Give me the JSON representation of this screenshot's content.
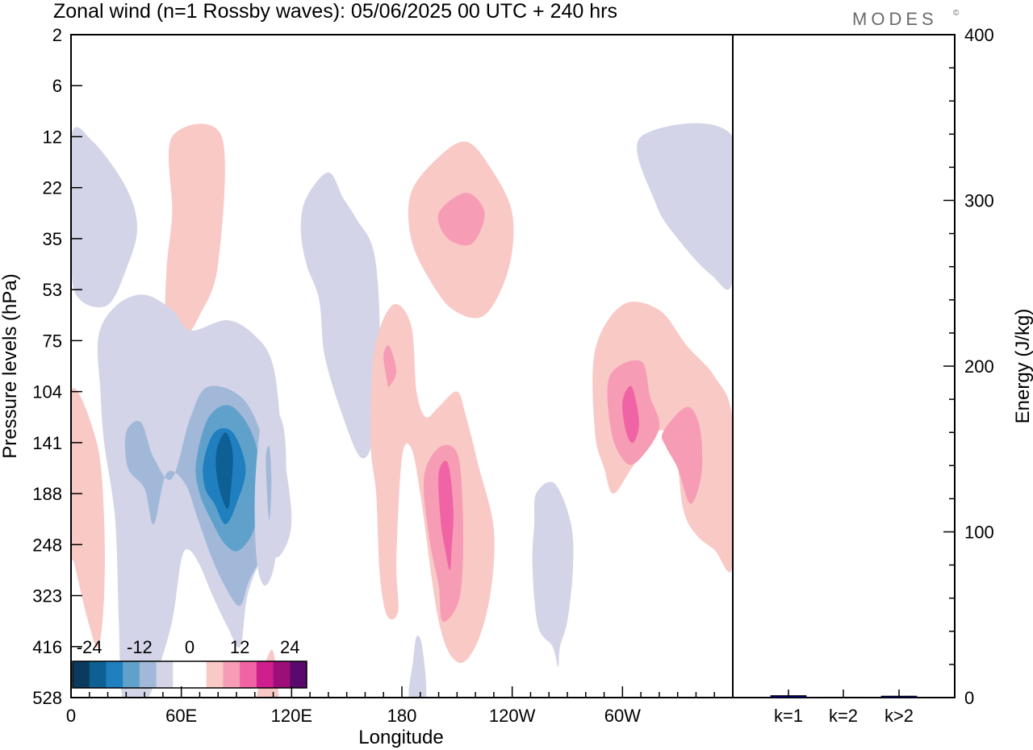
{
  "chart_data": {
    "type": "heatmap",
    "title": "Zonal wind (n=1 Rossby waves):  05/06/2025  00 UTC  + 240 hrs",
    "logo": "MODES",
    "logo_mark": "©",
    "xlabel": "Longitude",
    "ylabel": "Pressure levels (hPa)",
    "x_ticks": [
      "0",
      "60E",
      "120E",
      "180",
      "120W",
      "60W"
    ],
    "x_tick_values": [
      0,
      60,
      120,
      180,
      240,
      300
    ],
    "xlim": [
      0,
      360
    ],
    "y_ticks": [
      "2",
      "6",
      "12",
      "22",
      "35",
      "53",
      "75",
      "104",
      "141",
      "188",
      "248",
      "323",
      "416",
      "528"
    ],
    "y_scale": "categorical pressure levels",
    "colorbar": {
      "labels": [
        "-24",
        "-12",
        "0",
        "12",
        "24"
      ],
      "colors": [
        "#0a3a5e",
        "#0e5f94",
        "#1f7fbf",
        "#60a1cc",
        "#a1b8d9",
        "#d3d4e7",
        "#ffffff",
        "#ffffff",
        "#f9c9c6",
        "#f79cb5",
        "#f064a5",
        "#cf1f8c",
        "#9c0f7b",
        "#5a0a6c"
      ],
      "placement": "bottom-left"
    },
    "regions": [
      {
        "level": -1,
        "points": [
          [
            12,
            2.1
          ],
          [
            30,
            3.0
          ],
          [
            36,
            3.8
          ],
          [
            30,
            4.6
          ],
          [
            20,
            5.3
          ],
          [
            5,
            5.2
          ],
          [
            0,
            4.5
          ],
          [
            0,
            2
          ]
        ]
      },
      {
        "level": 1,
        "points": [
          [
            55,
            2
          ],
          [
            82,
            2
          ],
          [
            80,
            4.5
          ],
          [
            70,
            5.5
          ],
          [
            62,
            5.9
          ],
          [
            52,
            5.8
          ],
          [
            52,
            4.6
          ],
          [
            55,
            3.5
          ]
        ]
      },
      {
        "level": -1,
        "points": [
          [
            128,
            3.2
          ],
          [
            140,
            2.7
          ],
          [
            148,
            3.2
          ],
          [
            155,
            3.6
          ],
          [
            165,
            4.3
          ],
          [
            168,
            6.0
          ],
          [
            165,
            7.8
          ],
          [
            158,
            8.3
          ],
          [
            148,
            7.5
          ],
          [
            138,
            6.3
          ],
          [
            135,
            5.2
          ],
          [
            128,
            4.5
          ],
          [
            125,
            3.8
          ]
        ]
      },
      {
        "level": 1,
        "points": [
          [
            185,
            3.1
          ],
          [
            200,
            2.4
          ],
          [
            215,
            2.1
          ],
          [
            228,
            2.6
          ],
          [
            240,
            3.5
          ],
          [
            238,
            4.6
          ],
          [
            225,
            5.5
          ],
          [
            208,
            5.4
          ],
          [
            195,
            4.8
          ],
          [
            185,
            4.0
          ]
        ]
      },
      {
        "level": 2,
        "points": [
          [
            200,
            3.5
          ],
          [
            215,
            3.1
          ],
          [
            225,
            3.5
          ],
          [
            218,
            4.1
          ],
          [
            205,
            4.0
          ]
        ]
      },
      {
        "level": -1,
        "points": [
          [
            310,
            2
          ],
          [
            360,
            2
          ],
          [
            360,
            4.8
          ],
          [
            348,
            4.7
          ],
          [
            330,
            4.0
          ],
          [
            318,
            3.3
          ]
        ]
      },
      {
        "level": 1,
        "points": [
          [
            0,
            7.0
          ],
          [
            14,
            8.0
          ],
          [
            18,
            9.5
          ],
          [
            18,
            11.0
          ],
          [
            15,
            12.0
          ],
          [
            10,
            11.6
          ],
          [
            2,
            10.4
          ],
          [
            0,
            10.0
          ]
        ]
      },
      {
        "level": -1,
        "points": [
          [
            15,
            5.9
          ],
          [
            25,
            5.3
          ],
          [
            40,
            5.1
          ],
          [
            55,
            5.4
          ],
          [
            65,
            5.8
          ],
          [
            85,
            5.6
          ],
          [
            100,
            5.9
          ],
          [
            110,
            6.5
          ],
          [
            115,
            8.0
          ],
          [
            120,
            9.5
          ],
          [
            114,
            10.2
          ],
          [
            104,
            10.3
          ],
          [
            96,
            11.0
          ],
          [
            92,
            12.0
          ],
          [
            85,
            11.6
          ],
          [
            77,
            11.0
          ],
          [
            70,
            10.4
          ],
          [
            64,
            10.1
          ],
          [
            60,
            10.3
          ],
          [
            55,
            11.5
          ],
          [
            47,
            12.5
          ],
          [
            42,
            13.0
          ],
          [
            36,
            13.0
          ],
          [
            28,
            13.0
          ],
          [
            26,
            11.5
          ],
          [
            24,
            9.5
          ],
          [
            18,
            8.0
          ],
          [
            16,
            7.0
          ]
        ]
      },
      {
        "level": -2,
        "points": [
          [
            30,
            7.8
          ],
          [
            38,
            7.6
          ],
          [
            45,
            8.3
          ],
          [
            55,
            8.7
          ],
          [
            65,
            7.5
          ],
          [
            75,
            6.9
          ],
          [
            95,
            7.2
          ],
          [
            108,
            8.4
          ],
          [
            112,
            9.7
          ],
          [
            106,
            10.1
          ],
          [
            97,
            10.7
          ],
          [
            92,
            11.2
          ],
          [
            85,
            10.9
          ],
          [
            77,
            10.3
          ],
          [
            69,
            9.5
          ],
          [
            62,
            8.8
          ],
          [
            52,
            8.6
          ],
          [
            45,
            9.6
          ],
          [
            40,
            8.9
          ],
          [
            31,
            8.5
          ]
        ]
      },
      {
        "level": -3,
        "points": [
          [
            68,
            8.4
          ],
          [
            75,
            7.5
          ],
          [
            88,
            7.3
          ],
          [
            101,
            8.1
          ],
          [
            101,
            9.5
          ],
          [
            92,
            10.1
          ],
          [
            84,
            10.0
          ],
          [
            76,
            9.5
          ],
          [
            70,
            9.0
          ]
        ]
      },
      {
        "level": -4,
        "points": [
          [
            72,
            8.4
          ],
          [
            78,
            7.8
          ],
          [
            88,
            7.8
          ],
          [
            95,
            8.5
          ],
          [
            90,
            9.2
          ],
          [
            84,
            9.6
          ],
          [
            78,
            9.2
          ],
          [
            73,
            8.9
          ]
        ]
      },
      {
        "level": -5,
        "points": [
          [
            79,
            8.2
          ],
          [
            84,
            7.8
          ],
          [
            88,
            8.2
          ],
          [
            87,
            8.9
          ],
          [
            85,
            9.3
          ],
          [
            80,
            8.8
          ]
        ]
      },
      {
        "level": -1,
        "points": [
          [
            103,
            7.7
          ],
          [
            108,
            7.3
          ],
          [
            115,
            7.6
          ],
          [
            117,
            8.5
          ],
          [
            114,
            9.5
          ],
          [
            110,
            10.5
          ],
          [
            105,
            10.8
          ],
          [
            101,
            10.3
          ],
          [
            100,
            9.0
          ]
        ]
      },
      {
        "level": -2,
        "points": [
          [
            106,
            8.3
          ],
          [
            108,
            8.1
          ],
          [
            109,
            8.8
          ],
          [
            108,
            9.5
          ],
          [
            107,
            9.2
          ]
        ]
      },
      {
        "level": 1,
        "points": [
          [
            101,
            13.0
          ],
          [
            106,
            12.3
          ],
          [
            110,
            12.1
          ],
          [
            113,
            13.0
          ],
          [
            112,
            14.0
          ],
          [
            100,
            14.0
          ]
        ]
      },
      {
        "level": -1,
        "points": [
          [
            142,
            6.3
          ],
          [
            145,
            6.1
          ],
          [
            147,
            6.5
          ],
          [
            143,
            6.7
          ]
        ]
      },
      {
        "level": 1,
        "points": [
          [
            165,
            6.2
          ],
          [
            175,
            5.3
          ],
          [
            185,
            5.7
          ],
          [
            188,
            7.0
          ],
          [
            193,
            7.5
          ],
          [
            200,
            7.3
          ],
          [
            210,
            7.0
          ],
          [
            215,
            7.5
          ],
          [
            222,
            8.5
          ],
          [
            230,
            9.7
          ],
          [
            228,
            11.0
          ],
          [
            220,
            12.0
          ],
          [
            210,
            12.3
          ],
          [
            200,
            11.5
          ],
          [
            190,
            9.0
          ],
          [
            185,
            8.1
          ],
          [
            180,
            8.3
          ],
          [
            177,
            10.3
          ],
          [
            178,
            11.3
          ],
          [
            172,
            11.4
          ],
          [
            168,
            10.6
          ],
          [
            166,
            9.0
          ],
          [
            163,
            8.0
          ]
        ]
      },
      {
        "level": 2,
        "points": [
          [
            192,
            8.7
          ],
          [
            200,
            8.1
          ],
          [
            210,
            8.2
          ],
          [
            213,
            9.2
          ],
          [
            213,
            10.5
          ],
          [
            210,
            11.2
          ],
          [
            202,
            11.5
          ],
          [
            200,
            10.8
          ],
          [
            195,
            9.9
          ]
        ]
      },
      {
        "level": 2,
        "points": [
          [
            170,
            6.3
          ],
          [
            173,
            6.1
          ],
          [
            177,
            6.6
          ],
          [
            173,
            6.9
          ],
          [
            172,
            6.8
          ]
        ]
      },
      {
        "level": 3,
        "points": [
          [
            200,
            8.6
          ],
          [
            205,
            8.4
          ],
          [
            208,
            9.3
          ],
          [
            207,
            10.1
          ],
          [
            206,
            10.5
          ],
          [
            203,
            10.0
          ],
          [
            201,
            9.5
          ]
        ]
      },
      {
        "level": -1,
        "points": [
          [
            188,
            11.8
          ],
          [
            191,
            12.0
          ],
          [
            193,
            13.0
          ],
          [
            184,
            13.0
          ],
          [
            186,
            12.3
          ]
        ]
      },
      {
        "level": -1,
        "points": [
          [
            253,
            9.0
          ],
          [
            263,
            8.8
          ],
          [
            272,
            9.6
          ],
          [
            273,
            10.5
          ],
          [
            270,
            11.5
          ],
          [
            266,
            12.0
          ],
          [
            265,
            12.4
          ],
          [
            262,
            12.0
          ],
          [
            254,
            11.6
          ],
          [
            251,
            10.4
          ],
          [
            252,
            9.6
          ]
        ]
      },
      {
        "level": 1,
        "points": [
          [
            285,
            6.2
          ],
          [
            300,
            5.3
          ],
          [
            320,
            5.4
          ],
          [
            335,
            6.1
          ],
          [
            350,
            6.7
          ],
          [
            360,
            7.6
          ],
          [
            360,
            10.4
          ],
          [
            350,
            10.1
          ],
          [
            340,
            9.8
          ],
          [
            333,
            9.3
          ],
          [
            328,
            8.0
          ],
          [
            318,
            7.8
          ],
          [
            305,
            8.5
          ],
          [
            295,
            9.0
          ],
          [
            290,
            8.5
          ],
          [
            285,
            7.8
          ]
        ]
      },
      {
        "level": 2,
        "points": [
          [
            293,
            6.7
          ],
          [
            310,
            6.4
          ],
          [
            315,
            7.1
          ],
          [
            320,
            7.7
          ],
          [
            310,
            8.3
          ],
          [
            302,
            8.4
          ],
          [
            294,
            7.8
          ]
        ]
      },
      {
        "level": 2,
        "points": [
          [
            322,
            7.8
          ],
          [
            335,
            7.3
          ],
          [
            342,
            7.7
          ],
          [
            343,
            8.6
          ],
          [
            337,
            9.2
          ],
          [
            330,
            8.5
          ],
          [
            324,
            8.1
          ]
        ]
      },
      {
        "level": 3,
        "points": [
          [
            300,
            7.2
          ],
          [
            305,
            6.9
          ],
          [
            309,
            7.6
          ],
          [
            306,
            8.0
          ],
          [
            302,
            7.8
          ]
        ]
      }
    ],
    "energy_panel": {
      "ylabel": "Energy (J/kg)",
      "ylim": [
        0,
        400
      ],
      "y_ticks": [
        "0",
        "100",
        "200",
        "300",
        "400"
      ],
      "categories": [
        "k=1",
        "k=2",
        "k>2"
      ],
      "values": [
        1.2,
        0.3,
        0.9
      ],
      "bar_color": "#00006e"
    }
  }
}
